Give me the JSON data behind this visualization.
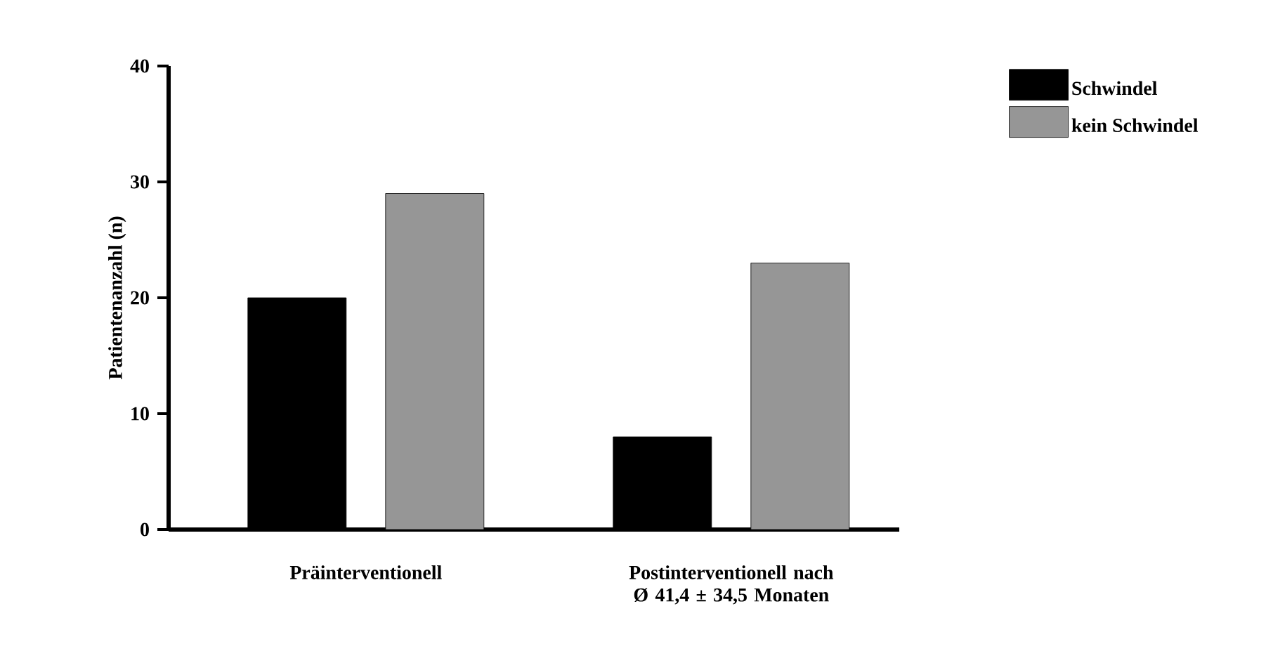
{
  "chart_data": {
    "type": "bar",
    "ylabel": "Patientenanzahl (n)",
    "categories": [
      "Präinterventionell",
      "Postinterventionell nach Ø 41,4 ± 34,5 Monaten"
    ],
    "series": [
      {
        "name": "Schwindel",
        "color": "#000000",
        "values": [
          20,
          8
        ]
      },
      {
        "name": "kein Schwindel",
        "color": "#969696",
        "values": [
          29,
          23
        ]
      }
    ],
    "ylim": [
      0,
      40
    ],
    "yticks": [
      0,
      10,
      20,
      30,
      40
    ],
    "grid": false,
    "legend": "top right"
  }
}
